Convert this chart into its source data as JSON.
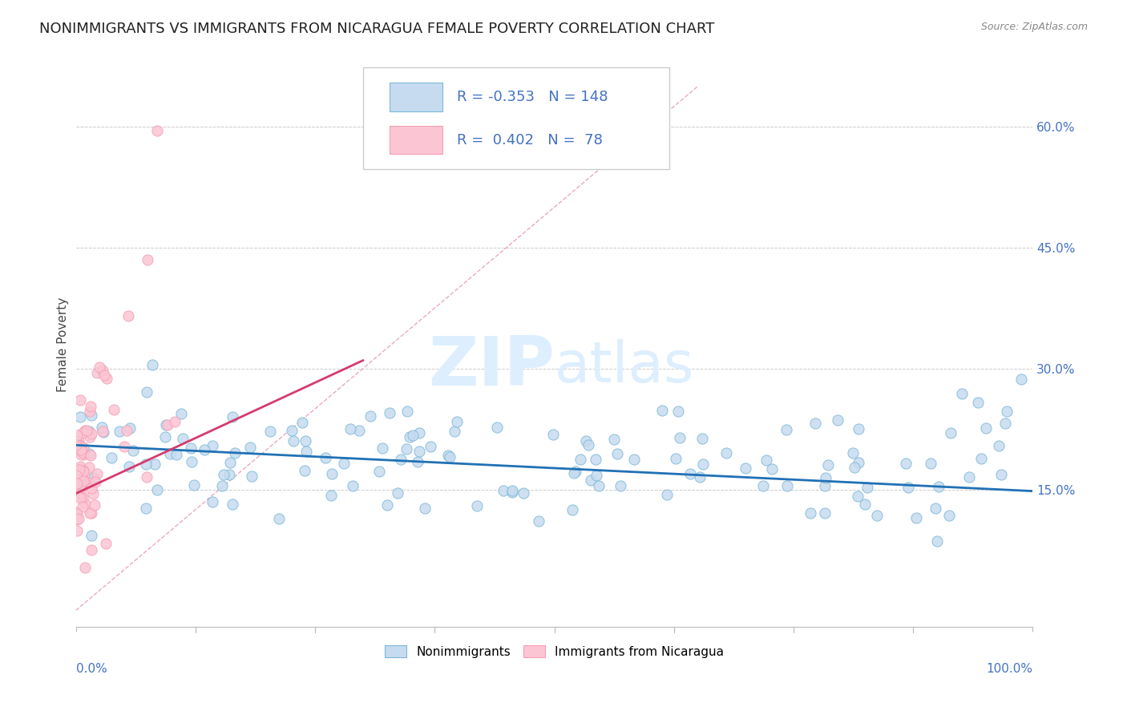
{
  "title": "NONIMMIGRANTS VS IMMIGRANTS FROM NICARAGUA FEMALE POVERTY CORRELATION CHART",
  "source": "Source: ZipAtlas.com",
  "ylabel": "Female Poverty",
  "R_blue": -0.353,
  "N_blue": 148,
  "R_pink": 0.402,
  "N_pink": 78,
  "xlim": [
    0.0,
    1.0
  ],
  "ylim": [
    -0.02,
    0.68
  ],
  "ytick_values": [
    0.15,
    0.3,
    0.45,
    0.6
  ],
  "ytick_labels": [
    "15.0%",
    "30.0%",
    "45.0%",
    "60.0%"
  ],
  "blue_edge": "#7ab8d9",
  "blue_fill": "#c6dbef",
  "pink_edge": "#f4a0b5",
  "pink_fill": "#fcc5d4",
  "trend_blue": "#2171b5",
  "trend_pink": "#d63b6e",
  "diag_color": "#e8a0b8",
  "watermark_color": "#ddeeff",
  "title_fontsize": 13,
  "tick_fontsize": 11,
  "legend_fontsize": 13
}
